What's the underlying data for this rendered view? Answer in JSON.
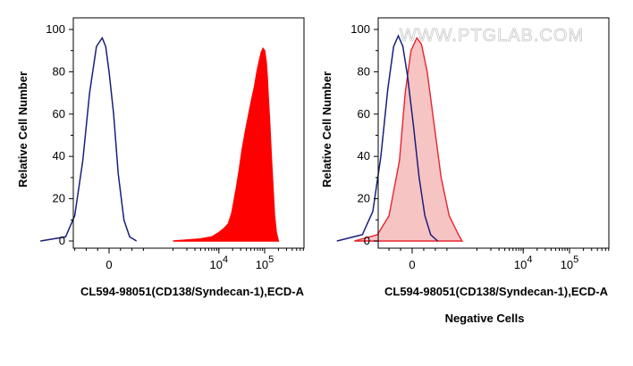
{
  "watermark": "WWW.PTGLAB.COM",
  "colors": {
    "positive_fill": "#ff0000",
    "negative_fill": "#f7c4c4",
    "negative_line": "#e8232e",
    "control_line": "#1a1f7a"
  },
  "chart_data": [
    {
      "type": "area",
      "title": "",
      "xlabel": "CL594-98051(CD138/Syndecan-1),ECD-A",
      "ylabel": "Relative Cell Number",
      "x_scale": "biexponential",
      "ylim": [
        0,
        100
      ],
      "y_ticks": [
        "0",
        "20",
        "40",
        "60",
        "80",
        "100"
      ],
      "x_ticks": [
        {
          "value": 0,
          "base": "0",
          "exp": ""
        },
        {
          "value": 10000,
          "base": "10",
          "exp": "4"
        },
        {
          "value": 100000,
          "base": "10",
          "exp": "5"
        }
      ],
      "series": [
        {
          "style": "line",
          "color": "#1a1f7a",
          "points": [
            [
              -600,
              0
            ],
            [
              -380,
              2
            ],
            [
              -300,
              12
            ],
            [
              -230,
              38
            ],
            [
              -170,
              70
            ],
            [
              -110,
              92
            ],
            [
              -60,
              96
            ],
            [
              -30,
              92
            ],
            [
              0,
              80
            ],
            [
              40,
              60
            ],
            [
              80,
              32
            ],
            [
              130,
              10
            ],
            [
              180,
              2
            ],
            [
              240,
              0
            ]
          ]
        },
        {
          "style": "filled",
          "color": "#ff0000",
          "points": [
            [
              1000,
              0
            ],
            [
              2000,
              0.5
            ],
            [
              4000,
              1
            ],
            [
              7000,
              2
            ],
            [
              10000,
              4
            ],
            [
              13000,
              6
            ],
            [
              16000,
              8
            ],
            [
              19000,
              13
            ],
            [
              21000,
              18
            ],
            [
              24000,
              25
            ],
            [
              28000,
              34
            ],
            [
              32000,
              43
            ],
            [
              38000,
              52
            ],
            [
              45000,
              60
            ],
            [
              52000,
              67
            ],
            [
              60000,
              73
            ],
            [
              68000,
              80
            ],
            [
              76000,
              85
            ],
            [
              84000,
              89
            ],
            [
              92000,
              91
            ],
            [
              100000,
              90
            ],
            [
              108000,
              85
            ],
            [
              114000,
              78
            ],
            [
              120000,
              68
            ],
            [
              130000,
              55
            ],
            [
              140000,
              40
            ],
            [
              152000,
              26
            ],
            [
              165000,
              12
            ],
            [
              180000,
              4
            ],
            [
              200000,
              0
            ]
          ]
        }
      ]
    },
    {
      "type": "area",
      "title": "Negative Cells",
      "xlabel": "CL594-98051(CD138/Syndecan-1),ECD-A",
      "ylabel": "Relative Cell Number",
      "x_scale": "biexponential",
      "ylim": [
        0,
        100
      ],
      "y_ticks": [
        "0",
        "20",
        "40",
        "60",
        "80",
        "100"
      ],
      "x_ticks": [
        {
          "value": 0,
          "base": "0",
          "exp": ""
        },
        {
          "value": 10000,
          "base": "10",
          "exp": "4"
        },
        {
          "value": 100000,
          "base": "10",
          "exp": "5"
        }
      ],
      "series": [
        {
          "style": "filled",
          "color": "#e8232e",
          "fill": "#f7c4c4",
          "points": [
            [
              -500,
              0
            ],
            [
              -300,
              3
            ],
            [
              -200,
              12
            ],
            [
              -110,
              38
            ],
            [
              -60,
              70
            ],
            [
              -10,
              90
            ],
            [
              40,
              96
            ],
            [
              80,
              93
            ],
            [
              130,
              80
            ],
            [
              190,
              55
            ],
            [
              250,
              30
            ],
            [
              320,
              12
            ],
            [
              400,
              3
            ],
            [
              480,
              0
            ]
          ]
        },
        {
          "style": "line",
          "color": "#1a1f7a",
          "points": [
            [
              -650,
              0
            ],
            [
              -430,
              3
            ],
            [
              -340,
              14
            ],
            [
              -270,
              40
            ],
            [
              -210,
              72
            ],
            [
              -160,
              92
            ],
            [
              -120,
              97
            ],
            [
              -80,
              92
            ],
            [
              -40,
              78
            ],
            [
              10,
              55
            ],
            [
              60,
              30
            ],
            [
              110,
              12
            ],
            [
              160,
              3
            ],
            [
              220,
              0
            ]
          ]
        }
      ]
    }
  ]
}
